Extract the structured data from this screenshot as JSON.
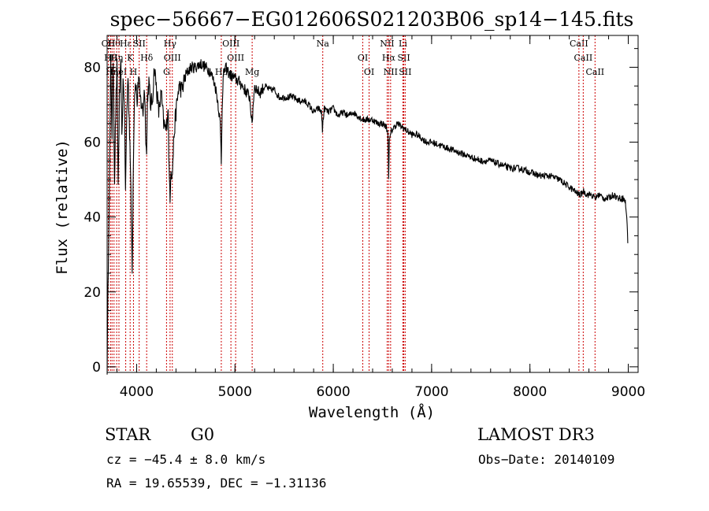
{
  "chart_data": {
    "type": "line",
    "title": "spec−56667−EG012606S021203B06_sp14−145.fits",
    "xlabel": "Wavelength (Å)",
    "ylabel": "Flux (relative)",
    "xlim": [
      3700,
      9100
    ],
    "ylim": [
      -1.5,
      88.5
    ],
    "xticks": [
      4000,
      5000,
      6000,
      7000,
      8000,
      9000
    ],
    "yticks": [
      0,
      20,
      40,
      60,
      80
    ],
    "series": [
      {
        "name": "flux",
        "x": [
          3700,
          3712,
          3725,
          3737,
          3750,
          3762,
          3775,
          3787,
          3800,
          3812,
          3825,
          3840,
          3850,
          3862,
          3875,
          3887,
          3900,
          3912,
          3925,
          3935,
          3945,
          3955,
          3968,
          3980,
          3992,
          4005,
          4020,
          4035,
          4050,
          4065,
          4080,
          4090,
          4101,
          4110,
          4125,
          4140,
          4160,
          4180,
          4200,
          4225,
          4250,
          4275,
          4300,
          4320,
          4330,
          4340,
          4350,
          4360,
          4380,
          4400,
          4430,
          4460,
          4500,
          4550,
          4600,
          4650,
          4700,
          4750,
          4800,
          4830,
          4850,
          4861,
          4870,
          4880,
          4900,
          4950,
          5000,
          5050,
          5100,
          5150,
          5167,
          5173,
          5183,
          5190,
          5200,
          5250,
          5300,
          5350,
          5400,
          5450,
          5500,
          5550,
          5600,
          5650,
          5700,
          5750,
          5800,
          5850,
          5880,
          5890,
          5896,
          5910,
          5950,
          6000,
          6050,
          6100,
          6150,
          6200,
          6250,
          6300,
          6350,
          6400,
          6450,
          6500,
          6540,
          6556,
          6563,
          6570,
          6590,
          6650,
          6700,
          6750,
          6800,
          6850,
          6900,
          6950,
          7000,
          7100,
          7200,
          7300,
          7400,
          7500,
          7600,
          7700,
          7800,
          7900,
          8000,
          8100,
          8200,
          8300,
          8400,
          8450,
          8498,
          8520,
          8542,
          8580,
          8620,
          8662,
          8700,
          8750,
          8800,
          8850,
          8900,
          8950,
          8970,
          8985,
          8995
        ],
        "values": [
          0,
          28,
          52,
          82,
          62,
          83,
          50,
          68,
          80,
          48,
          72,
          80,
          60,
          76,
          72,
          47,
          68,
          78,
          66,
          57,
          40,
          27,
          58,
          74,
          76,
          70,
          78,
          72,
          70,
          68,
          75,
          65,
          56,
          72,
          76,
          70,
          71,
          80,
          75,
          68,
          73,
          65,
          63,
          70,
          52,
          46,
          54,
          50,
          62,
          68,
          75,
          74,
          78,
          80,
          80,
          81,
          80,
          79,
          75,
          70,
          65,
          55,
          70,
          77,
          80,
          78,
          77,
          76,
          74,
          72,
          67,
          64,
          69,
          72,
          75,
          73,
          75,
          74,
          74,
          72,
          72,
          72,
          72,
          71,
          71,
          70,
          68,
          69,
          68,
          63,
          66,
          69,
          68,
          69,
          67,
          68,
          67,
          68,
          67,
          66,
          66,
          66,
          65,
          65,
          64,
          62,
          51,
          60,
          63,
          65,
          64,
          63,
          62,
          62,
          61,
          60,
          60,
          59,
          58,
          57,
          56,
          55,
          55,
          54,
          53,
          53,
          52,
          51,
          51,
          50,
          48,
          47,
          46,
          46,
          47,
          46,
          46,
          45,
          46,
          45,
          45,
          46,
          45,
          45,
          44,
          40,
          33
        ]
      }
    ],
    "line_markers": [
      {
        "x": 3712,
        "label": "OII"
      },
      {
        "x": 3734,
        "label": "Hθ"
      },
      {
        "x": 3750,
        "label": "Hη"
      },
      {
        "x": 3770,
        "label": "Hθ"
      },
      {
        "x": 3797,
        "label": "Hη"
      },
      {
        "x": 3820,
        "label": "HeI"
      },
      {
        "x": 3889,
        "label": "Hε"
      },
      {
        "x": 3934,
        "label": "K"
      },
      {
        "x": 3968,
        "label": "H"
      },
      {
        "x": 4026,
        "label": "SII"
      },
      {
        "x": 4102,
        "label": "Hδ"
      },
      {
        "x": 4304,
        "label": "G"
      },
      {
        "x": 4340,
        "label": "Hγ"
      },
      {
        "x": 4363,
        "label": "OIII"
      },
      {
        "x": 4861,
        "label": "Hβ"
      },
      {
        "x": 4959,
        "label": "OIII"
      },
      {
        "x": 5007,
        "label": "OIII"
      },
      {
        "x": 5175,
        "label": "Mg"
      },
      {
        "x": 5893,
        "label": "Na"
      },
      {
        "x": 6300,
        "label": "OI"
      },
      {
        "x": 6364,
        "label": "OI"
      },
      {
        "x": 6548,
        "label": "NII"
      },
      {
        "x": 6563,
        "label": "Hα"
      },
      {
        "x": 6583,
        "label": "NII"
      },
      {
        "x": 6708,
        "label": "Li"
      },
      {
        "x": 6717,
        "label": "SII"
      },
      {
        "x": 6731,
        "label": "SII"
      },
      {
        "x": 8498,
        "label": "CaII"
      },
      {
        "x": 8542,
        "label": "CaII"
      },
      {
        "x": 8662,
        "label": "CaII"
      }
    ],
    "grid": false,
    "line_color": "#000000",
    "marker_color": "#cc0000"
  },
  "info": {
    "object_type": "STAR",
    "spectral_class": "G0",
    "survey": "LAMOST DR3",
    "velocity": "cz = −45.4 ± 8.0 km/s",
    "obs_date": "Obs−Date: 20140109",
    "coords": "RA =  19.65539, DEC =  −1.31136"
  }
}
